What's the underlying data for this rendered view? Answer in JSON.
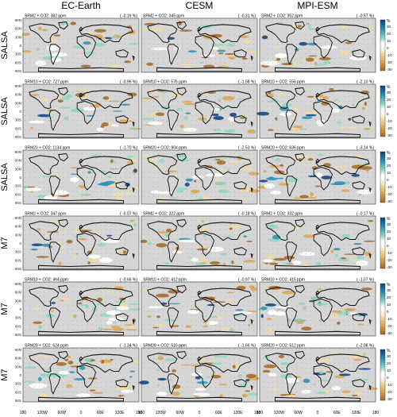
{
  "columns": [
    "EC-Earth",
    "CESM",
    "MPI-ESM"
  ],
  "rows": [
    {
      "label": "SALSA",
      "panels": [
        {
          "info": "SRM2 + CO2: 382 ppm",
          "pct": "( -0.19 %)"
        },
        {
          "info": "SRM2 + CO2: 345 ppm",
          "pct": "( -0.31 %)"
        },
        {
          "info": "SRM2 + CO2: 352 ppm",
          "pct": "( -0.57 %)"
        }
      ]
    },
    {
      "label": "SALSA",
      "panels": [
        {
          "info": "SRM10 + CO2: 727 ppm",
          "pct": "( -0.96 %)"
        },
        {
          "info": "SRM10 + CO2: 576 ppm",
          "pct": "( -1.58 %)"
        },
        {
          "info": "SRM10 + CO2: 556 ppm",
          "pct": "( -2.10 %)"
        }
      ]
    },
    {
      "label": "SALSA",
      "panels": [
        {
          "info": "SRM20 + CO2: 1134 ppm",
          "pct": "( -1.70 %)"
        },
        {
          "info": "SRM20 + CO2: 904 ppm",
          "pct": "( -2.53 %)"
        },
        {
          "info": "SRM20 + CO2: 836 ppm",
          "pct": "( -3.14 %)"
        }
      ]
    },
    {
      "label": "M7",
      "panels": [
        {
          "info": "SRM2 + CO2: 347 ppm",
          "pct": "( -0.07 %)"
        },
        {
          "info": "SRM2 + CO2: 322 ppm",
          "pct": "( -0.18 %)"
        },
        {
          "info": "SRM2 + CO2: 332 ppm",
          "pct": "( -0.17 %)"
        }
      ]
    },
    {
      "label": "M7",
      "panels": [
        {
          "info": "SRM10 + CO2: 464 ppm",
          "pct": "( -0.66 %)"
        },
        {
          "info": "SRM10 + CO2: 412 ppm",
          "pct": "( -0.97 %)"
        },
        {
          "info": "SRM10 + CO2: 415 ppm",
          "pct": "( -1.07 %)"
        }
      ]
    },
    {
      "label": "M7",
      "panels": [
        {
          "info": "SRM20 + CO2: 624 ppm",
          "pct": "( -1.34 %)"
        },
        {
          "info": "SRM20 + CO2: 516 ppm",
          "pct": "( -1.66 %)"
        },
        {
          "info": "SRM20 + CO2: 512 ppm",
          "pct": "( -2.08 %)"
        }
      ]
    }
  ],
  "lat_ticks": [
    "90N",
    "60N",
    "30N",
    "0",
    "30S",
    "60S",
    "90S"
  ],
  "lon_ticks": [
    "180",
    "120W",
    "60W",
    "0",
    "60E",
    "120E",
    "180"
  ],
  "colorbar": {
    "unit": "%",
    "ticks": [
      "30",
      "20",
      "10",
      "0",
      "-10",
      "-20",
      "-30"
    ],
    "colors": {
      "positive_strong": "#0a3f7c",
      "positive_mid": "#2a8fb4",
      "positive_light": "#8fd8c0",
      "neutral": "#ffffff",
      "negative_light": "#f3dca0",
      "negative_mid": "#d9a651",
      "negative_strong": "#a5661f"
    }
  },
  "map_colors": {
    "background": "#d6d6d6",
    "coast": "#111111"
  }
}
